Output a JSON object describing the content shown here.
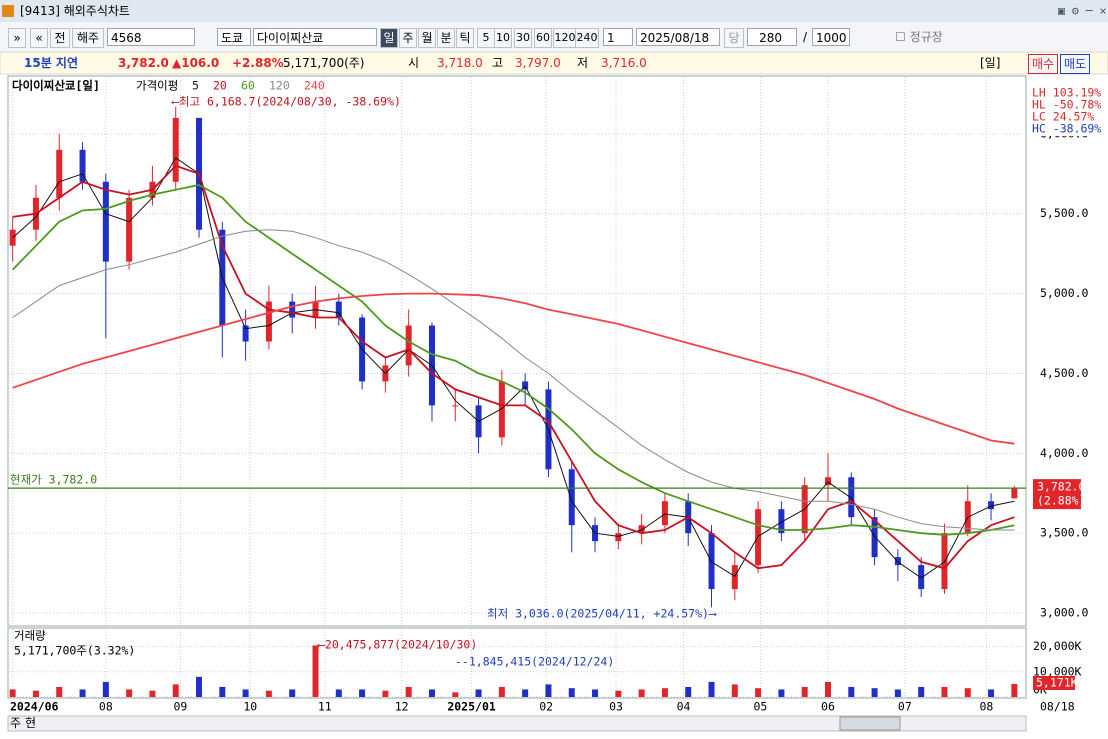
{
  "window": {
    "title": "[9413] 해외주식차트"
  },
  "toolbar": {
    "market": "전",
    "exchange_type": "해주",
    "code": "4568",
    "exchange": "도쿄",
    "name": "다이이찌산쿄",
    "periods": [
      "일",
      "주",
      "월",
      "분",
      "틱"
    ],
    "minutes": [
      "5",
      "10",
      "30",
      "60",
      "120",
      "240"
    ],
    "interval": "1",
    "date": "2025/08/18",
    "current_label": "당",
    "count": "280",
    "separator": "/",
    "max_count": "1000",
    "session": "정규장"
  },
  "info_bar": {
    "delay": "15분 지연",
    "price": "3,782.0",
    "change": "▲106.0",
    "change_pct": "+2.88%",
    "volume": "5,171,700(주)",
    "open_label": "시",
    "open": "3,718.0",
    "high_label": "고",
    "high": "3,797.0",
    "low_label": "저",
    "low": "3,716.0",
    "period": "[일]",
    "buy": "매수",
    "sell": "매도"
  },
  "footer": {
    "left": "주",
    "right": "현"
  },
  "chart_data": {
    "type": "candlestick",
    "title": "다이이찌산쿄[일]",
    "ma_label": "가격이평",
    "xlim": [
      -0.2,
      43.5
    ],
    "xticks": [
      {
        "value": 0,
        "label": "2024/06"
      },
      {
        "value": 4,
        "label": "08"
      },
      {
        "value": 7.2,
        "label": "09"
      },
      {
        "value": 10.2,
        "label": "10"
      },
      {
        "value": 13.4,
        "label": "11"
      },
      {
        "value": 16.7,
        "label": "12"
      },
      {
        "value": 19.7,
        "label": "2025/01"
      },
      {
        "value": 22.9,
        "label": "02"
      },
      {
        "value": 25.9,
        "label": "03"
      },
      {
        "value": 28.8,
        "label": "04"
      },
      {
        "value": 32.1,
        "label": "05"
      },
      {
        "value": 35,
        "label": "06"
      },
      {
        "value": 38.3,
        "label": "07"
      },
      {
        "value": 41.8,
        "label": "08"
      }
    ],
    "x_end_label": "08/18",
    "ylim": [
      2925,
      6356
    ],
    "yticks": [
      {
        "value": 3000,
        "label": "3,000.0"
      },
      {
        "value": 3500,
        "label": "3,500.0"
      },
      {
        "value": 4000,
        "label": "4,000.0"
      },
      {
        "value": 4500,
        "label": "4,500.0"
      },
      {
        "value": 5000,
        "label": "5,000.0"
      },
      {
        "value": 5500,
        "label": "5,500.0"
      },
      {
        "value": 6000,
        "label": "6,000.0"
      }
    ],
    "grid": true,
    "up_color": "#e0262b",
    "down_color": "#1f2fc7",
    "open": [
      5300,
      5400,
      5600,
      5900,
      5700,
      5200,
      5600,
      5700,
      6100,
      5400,
      4800,
      4700,
      4950,
      4850,
      4950,
      4850,
      4450,
      4550,
      4800,
      4300,
      4300,
      4100,
      4450,
      4400,
      3900,
      3550,
      3450,
      3500,
      3550,
      3700,
      3500,
      3150,
      3300,
      3650,
      3500,
      3800,
      3850,
      3600,
      3350,
      3300,
      3150,
      3500,
      3700,
      3718
    ],
    "high": [
      5480,
      5680,
      6000,
      5950,
      5750,
      5650,
      5800,
      6168.7,
      6100,
      5450,
      4900,
      5050,
      5000,
      5050,
      5000,
      4870,
      4600,
      4900,
      4820,
      4400,
      4350,
      4520,
      4500,
      4450,
      3950,
      3600,
      3560,
      3620,
      3750,
      3750,
      3550,
      3380,
      3700,
      3700,
      3850,
      4000,
      3880,
      3650,
      3400,
      3350,
      3560,
      3800,
      3750,
      3797
    ],
    "low": [
      5200,
      5330,
      5520,
      5650,
      4720,
      5150,
      5550,
      5650,
      5350,
      4600,
      4580,
      4650,
      4750,
      4780,
      4800,
      4400,
      4380,
      4480,
      4200,
      4200,
      4000,
      4050,
      4300,
      3850,
      3380,
      3380,
      3400,
      3430,
      3500,
      3420,
      3036,
      3080,
      3250,
      3450,
      3450,
      3700,
      3550,
      3300,
      3200,
      3100,
      3120,
      3480,
      3580,
      3716
    ],
    "close": [
      5400,
      5600,
      5900,
      5700,
      5200,
      5600,
      5700,
      6100,
      5400,
      4800,
      4700,
      4950,
      4850,
      4950,
      4850,
      4450,
      4550,
      4800,
      4300,
      4300,
      4100,
      4450,
      4400,
      3900,
      3550,
      3450,
      3500,
      3550,
      3700,
      3500,
      3150,
      3300,
      3650,
      3500,
      3800,
      3850,
      3600,
      3350,
      3300,
      3150,
      3500,
      3700,
      3650,
      3782
    ],
    "series": [
      {
        "name": "5",
        "color": "#111111",
        "values": [
          5350,
          5480,
          5700,
          5750,
          5500,
          5450,
          5600,
          5850,
          5750,
          5100,
          4780,
          4800,
          4880,
          4900,
          4880,
          4650,
          4500,
          4650,
          4550,
          4330,
          4200,
          4280,
          4420,
          4150,
          3700,
          3500,
          3480,
          3520,
          3620,
          3600,
          3320,
          3230,
          3480,
          3570,
          3650,
          3820,
          3720,
          3480,
          3320,
          3220,
          3320,
          3600,
          3670,
          3700
        ]
      },
      {
        "name": "20",
        "color": "#c8101e",
        "values": [
          5480,
          5500,
          5600,
          5700,
          5650,
          5620,
          5650,
          5800,
          5750,
          5300,
          5000,
          4900,
          4880,
          4850,
          4850,
          4700,
          4600,
          4650,
          4500,
          4400,
          4350,
          4300,
          4300,
          4200,
          3950,
          3700,
          3550,
          3500,
          3520,
          3600,
          3500,
          3380,
          3280,
          3300,
          3450,
          3650,
          3700,
          3580,
          3450,
          3320,
          3280,
          3450,
          3550,
          3600
        ]
      },
      {
        "name": "60",
        "color": "#4f9a1c",
        "values": [
          5150,
          5300,
          5450,
          5520,
          5530,
          5580,
          5620,
          5650,
          5680,
          5600,
          5450,
          5350,
          5250,
          5150,
          5050,
          4950,
          4800,
          4700,
          4620,
          4580,
          4500,
          4450,
          4380,
          4280,
          4150,
          4000,
          3900,
          3820,
          3750,
          3700,
          3650,
          3600,
          3550,
          3520,
          3520,
          3530,
          3550,
          3540,
          3520,
          3500,
          3490,
          3500,
          3520,
          3550
        ]
      },
      {
        "name": "120",
        "color": "#8a8a8a",
        "values": [
          4850,
          4950,
          5050,
          5100,
          5150,
          5180,
          5220,
          5260,
          5310,
          5360,
          5390,
          5400,
          5390,
          5350,
          5300,
          5260,
          5200,
          5120,
          5030,
          4930,
          4830,
          4720,
          4600,
          4500,
          4380,
          4270,
          4160,
          4050,
          3960,
          3880,
          3820,
          3780,
          3760,
          3730,
          3700,
          3700,
          3680,
          3650,
          3600,
          3560,
          3540,
          3530,
          3520,
          3520
        ]
      },
      {
        "name": "240",
        "color": "#f0444a",
        "values": [
          4410,
          4460,
          4510,
          4560,
          4600,
          4640,
          4680,
          4720,
          4760,
          4800,
          4840,
          4880,
          4920,
          4950,
          4970,
          4985,
          4995,
          5000,
          5000,
          4995,
          4990,
          4970,
          4940,
          4900,
          4870,
          4840,
          4810,
          4770,
          4730,
          4690,
          4650,
          4610,
          4570,
          4530,
          4490,
          4440,
          4390,
          4340,
          4280,
          4230,
          4180,
          4130,
          4080,
          4060
        ]
      }
    ],
    "current": {
      "value": 3782,
      "label": "현재가 3,782.0",
      "tag": "3,782.0",
      "tag_change": "(2.88%)",
      "color": "#3a7d1a"
    },
    "stats": [
      "LH 103.19%",
      "HL -50.78%",
      "LC  24.57%",
      "HC -38.69%"
    ],
    "annotations": [
      {
        "text": "⟵최고 6,168.7(2024/08/30, -38.69%)"
      },
      {
        "text": "최저 3,036.0(2025/04/11, +24.57%)⟶"
      },
      {
        "text": "⟵20,475,877(2024/10/30)"
      },
      {
        "text": "--1,845,415(2024/12/24)"
      }
    ],
    "volume": {
      "title": "거래량",
      "info": "5,171,700주(3.32%)",
      "tag": "5,171K",
      "ylim": [
        0,
        27000000
      ],
      "yticks": [
        {
          "value": 0,
          "label": "0K"
        },
        {
          "value": 10000000,
          "label": "10,000K"
        },
        {
          "value": 20000000,
          "label": "20,000K"
        }
      ],
      "values": [
        3000000,
        2500000,
        4000000,
        3000000,
        6000000,
        3000000,
        2500000,
        5000000,
        8000000,
        4000000,
        3000000,
        2500000,
        3000000,
        20475877,
        3000000,
        3000000,
        2500000,
        4000000,
        3000000,
        1845415,
        3000000,
        4000000,
        3000000,
        5000000,
        3500000,
        3000000,
        2500000,
        3000000,
        3500000,
        4000000,
        6000000,
        5000000,
        3500000,
        3000000,
        4000000,
        6000000,
        4000000,
        3500000,
        3000000,
        4000000,
        4000000,
        3500000,
        3000000,
        5171700
      ]
    }
  }
}
